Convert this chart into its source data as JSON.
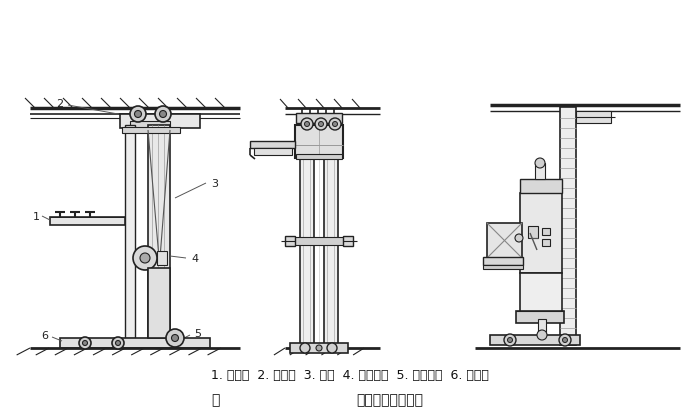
{
  "title_left": "图",
  "title_right": "巷道堆垛机的结构",
  "caption": "1. 载货台  2. 上横梁  3. 立柱  4. 起升机构  5. 运行机构  6. 下横梁",
  "bg_color": "#ffffff",
  "line_color": "#222222",
  "fig_width": 7.0,
  "fig_height": 4.14,
  "dpi": 100
}
